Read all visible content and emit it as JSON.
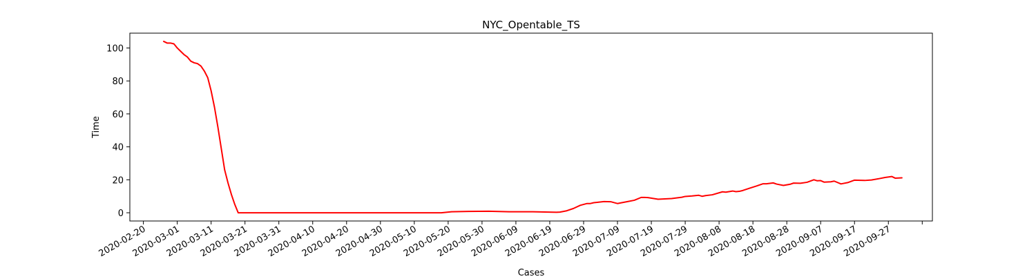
{
  "chart_data": {
    "type": "line",
    "title": "NYC_Opentable_TS",
    "xlabel": "Cases",
    "ylabel": "Time",
    "x_type": "date",
    "xlim": [
      "2020-02-16",
      "2020-10-10"
    ],
    "ylim": [
      -5,
      109
    ],
    "x_ticks": [
      "2020-02-20",
      "2020-03-01",
      "2020-03-11",
      "2020-03-21",
      "2020-03-31",
      "2020-04-10",
      "2020-04-20",
      "2020-04-30",
      "2020-05-10",
      "2020-05-20",
      "2020-05-30",
      "2020-06-09",
      "2020-06-19",
      "2020-06-29",
      "2020-07-09",
      "2020-07-19",
      "2020-07-29",
      "2020-08-08",
      "2020-08-18",
      "2020-08-28",
      "2020-09-07",
      "2020-09-17",
      "2020-09-27",
      "2020-10-07"
    ],
    "x_tick_labels": [
      "2020-02-20",
      "2020-03-01",
      "2020-03-11",
      "2020-03-21",
      "2020-03-31",
      "2020-04-10",
      "2020-04-20",
      "2020-04-30",
      "2020-05-10",
      "2020-05-20",
      "2020-05-30",
      "2020-06-09",
      "2020-06-19",
      "2020-06-29",
      "2020-07-09",
      "2020-07-19",
      "2020-07-29",
      "2020-08-08",
      "2020-08-18",
      "2020-08-28",
      "2020-09-07",
      "2020-09-17",
      "2020-09-27",
      ""
    ],
    "y_ticks": [
      0,
      20,
      40,
      60,
      80,
      100
    ],
    "y_tick_labels": [
      "0",
      "20",
      "40",
      "60",
      "80",
      "100"
    ],
    "grid": false,
    "legend": "none",
    "colors": {
      "line": "#ff0000",
      "axes": "#000000",
      "background": "#ffffff"
    },
    "series": [
      {
        "x": [
          "2020-02-26",
          "2020-02-27",
          "2020-02-28",
          "2020-02-29",
          "2020-03-01",
          "2020-03-02",
          "2020-03-03",
          "2020-03-04",
          "2020-03-05",
          "2020-03-06",
          "2020-03-07",
          "2020-03-08",
          "2020-03-09",
          "2020-03-10",
          "2020-03-11",
          "2020-03-12",
          "2020-03-13",
          "2020-03-14",
          "2020-03-15",
          "2020-03-16",
          "2020-03-17",
          "2020-03-18",
          "2020-03-19",
          "2020-03-20",
          "2020-03-21",
          "2020-03-22",
          "2020-03-23",
          "2020-03-24",
          "2020-04-15",
          "2020-05-18",
          "2020-05-21",
          "2020-05-26",
          "2020-06-01",
          "2020-06-07",
          "2020-06-14",
          "2020-06-21",
          "2020-06-22",
          "2020-06-24",
          "2020-06-26",
          "2020-06-28",
          "2020-06-30",
          "2020-07-01",
          "2020-07-02",
          "2020-07-03",
          "2020-07-05",
          "2020-07-07",
          "2020-07-09",
          "2020-07-10",
          "2020-07-12",
          "2020-07-14",
          "2020-07-16",
          "2020-07-17",
          "2020-07-18",
          "2020-07-21",
          "2020-07-23",
          "2020-07-25",
          "2020-07-28",
          "2020-07-29",
          "2020-07-31",
          "2020-08-02",
          "2020-08-03",
          "2020-08-04",
          "2020-08-06",
          "2020-08-09",
          "2020-08-10",
          "2020-08-12",
          "2020-08-13",
          "2020-08-14",
          "2020-08-15",
          "2020-08-17",
          "2020-08-19",
          "2020-08-21",
          "2020-08-22",
          "2020-08-24",
          "2020-08-25",
          "2020-08-27",
          "2020-08-29",
          "2020-08-30",
          "2020-09-01",
          "2020-09-03",
          "2020-09-05",
          "2020-09-06",
          "2020-09-07",
          "2020-09-08",
          "2020-09-10",
          "2020-09-11",
          "2020-09-13",
          "2020-09-15",
          "2020-09-17",
          "2020-09-20",
          "2020-09-22",
          "2020-09-24",
          "2020-09-26",
          "2020-09-28",
          "2020-09-29",
          "2020-10-01"
        ],
        "y": [
          104,
          103,
          103,
          102.5,
          100,
          98,
          96,
          94.5,
          92,
          91,
          90.5,
          89,
          86,
          82,
          74,
          64,
          52,
          39,
          26,
          18,
          11,
          5,
          0,
          0,
          0,
          0,
          0,
          0,
          0,
          0,
          0.6,
          0.8,
          0.9,
          0.6,
          0.6,
          0.3,
          0.4,
          1.2,
          2.6,
          4.5,
          5.6,
          5.6,
          6.1,
          6.3,
          6.8,
          6.7,
          5.6,
          6.0,
          6.8,
          7.6,
          9.3,
          9.3,
          9.2,
          8.2,
          8.4,
          8.6,
          9.4,
          9.9,
          10.2,
          10.6,
          10.0,
          10.4,
          10.9,
          12.7,
          12.5,
          13.2,
          12.8,
          13.0,
          13.5,
          14.9,
          16.2,
          17.6,
          17.6,
          18.1,
          17.4,
          16.6,
          17.3,
          18.0,
          17.9,
          18.5,
          20.0,
          19.4,
          19.5,
          18.6,
          18.8,
          19.2,
          17.5,
          18.3,
          19.8,
          19.6,
          19.9,
          20.6,
          21.4,
          22.0,
          21.0,
          21.2
        ]
      }
    ]
  }
}
